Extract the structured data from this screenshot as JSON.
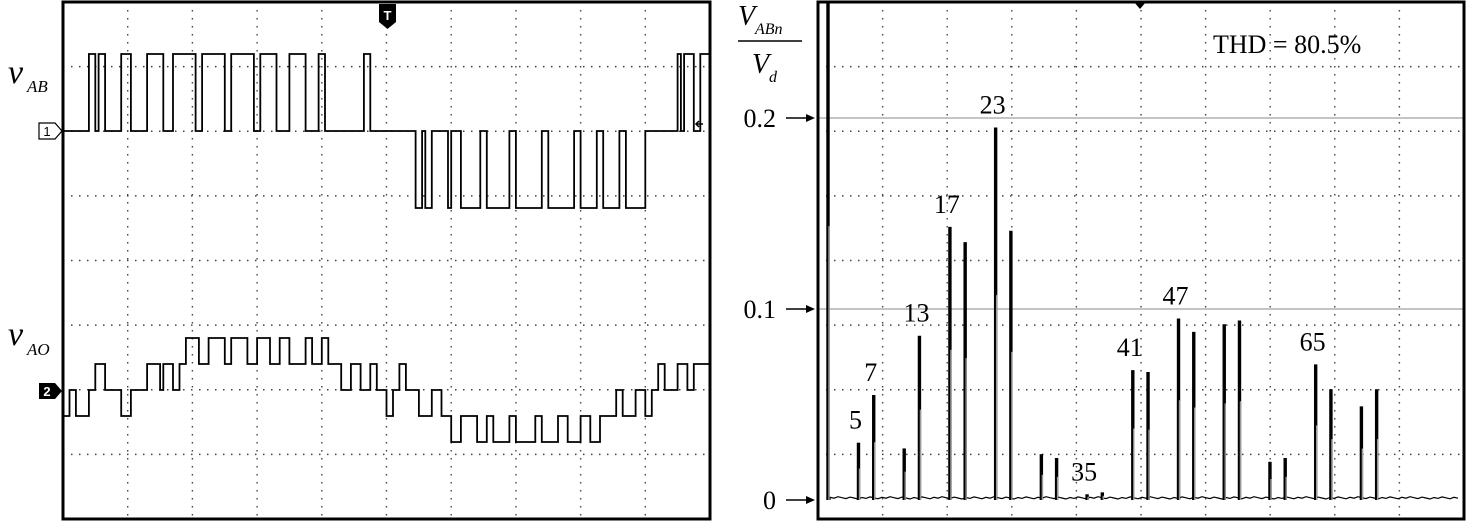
{
  "left_panel": {
    "channel1": {
      "label_main": "v",
      "label_sub": "AB",
      "marker": "1"
    },
    "channel2": {
      "label_main": "v",
      "label_sub": "AO",
      "marker": "2"
    },
    "trigger_marker": "T"
  },
  "right_panel": {
    "ylabel_top_main": "V",
    "ylabel_top_sub": "ABn",
    "ylabel_bottom_main": "V",
    "ylabel_bottom_sub": "d",
    "thd_text": "THD = 80.5%"
  },
  "chart_data": [
    {
      "type": "line",
      "title": "",
      "series": [
        {
          "name": "vAB",
          "levels": [
            -1,
            0,
            1
          ],
          "segments": [
            {
              "t": 0.0,
              "v": 0
            },
            {
              "t": 0.04,
              "v": 1
            },
            {
              "t": 0.05,
              "v": 0
            },
            {
              "t": 0.055,
              "v": 1
            },
            {
              "t": 0.065,
              "v": 0
            },
            {
              "t": 0.09,
              "v": 1
            },
            {
              "t": 0.105,
              "v": 0
            },
            {
              "t": 0.13,
              "v": 1
            },
            {
              "t": 0.155,
              "v": 0
            },
            {
              "t": 0.17,
              "v": 1
            },
            {
              "t": 0.205,
              "v": 0
            },
            {
              "t": 0.215,
              "v": 1
            },
            {
              "t": 0.25,
              "v": 0
            },
            {
              "t": 0.26,
              "v": 1
            },
            {
              "t": 0.295,
              "v": 0
            },
            {
              "t": 0.305,
              "v": 1
            },
            {
              "t": 0.33,
              "v": 0
            },
            {
              "t": 0.35,
              "v": 1
            },
            {
              "t": 0.375,
              "v": 0
            },
            {
              "t": 0.395,
              "v": 1
            },
            {
              "t": 0.405,
              "v": 0
            },
            {
              "t": 0.465,
              "v": 1
            },
            {
              "t": 0.475,
              "v": 0
            },
            {
              "t": 0.5,
              "v": 0
            },
            {
              "t": 0.545,
              "v": -1
            },
            {
              "t": 0.555,
              "v": 0
            },
            {
              "t": 0.56,
              "v": -1
            },
            {
              "t": 0.57,
              "v": 0
            },
            {
              "t": 0.595,
              "v": -1
            },
            {
              "t": 0.6,
              "v": 0
            },
            {
              "t": 0.615,
              "v": -1
            },
            {
              "t": 0.645,
              "v": 0
            },
            {
              "t": 0.655,
              "v": -1
            },
            {
              "t": 0.69,
              "v": 0
            },
            {
              "t": 0.7,
              "v": -1
            },
            {
              "t": 0.74,
              "v": 0
            },
            {
              "t": 0.75,
              "v": -1
            },
            {
              "t": 0.79,
              "v": 0
            },
            {
              "t": 0.8,
              "v": -1
            },
            {
              "t": 0.825,
              "v": 0
            },
            {
              "t": 0.835,
              "v": -1
            },
            {
              "t": 0.86,
              "v": 0
            },
            {
              "t": 0.87,
              "v": -1
            },
            {
              "t": 0.9,
              "v": 0
            },
            {
              "t": 0.95,
              "v": 1
            },
            {
              "t": 0.955,
              "v": 0
            },
            {
              "t": 0.96,
              "v": 1
            },
            {
              "t": 0.975,
              "v": 0
            },
            {
              "t": 0.985,
              "v": 1
            },
            {
              "t": 1.0,
              "v": 1
            }
          ]
        },
        {
          "name": "vAO",
          "levels": [
            -2,
            -1,
            0,
            1,
            2
          ],
          "segments": [
            {
              "t": 0.0,
              "v": -1
            },
            {
              "t": 0.01,
              "v": 0
            },
            {
              "t": 0.02,
              "v": -1
            },
            {
              "t": 0.04,
              "v": 0
            },
            {
              "t": 0.05,
              "v": 1
            },
            {
              "t": 0.065,
              "v": 0
            },
            {
              "t": 0.09,
              "v": -1
            },
            {
              "t": 0.105,
              "v": 0
            },
            {
              "t": 0.13,
              "v": 1
            },
            {
              "t": 0.15,
              "v": 0
            },
            {
              "t": 0.155,
              "v": 1
            },
            {
              "t": 0.17,
              "v": 0
            },
            {
              "t": 0.18,
              "v": 1
            },
            {
              "t": 0.19,
              "v": 2
            },
            {
              "t": 0.21,
              "v": 1
            },
            {
              "t": 0.225,
              "v": 2
            },
            {
              "t": 0.25,
              "v": 1
            },
            {
              "t": 0.26,
              "v": 2
            },
            {
              "t": 0.285,
              "v": 1
            },
            {
              "t": 0.3,
              "v": 2
            },
            {
              "t": 0.32,
              "v": 1
            },
            {
              "t": 0.335,
              "v": 2
            },
            {
              "t": 0.35,
              "v": 1
            },
            {
              "t": 0.375,
              "v": 2
            },
            {
              "t": 0.385,
              "v": 1
            },
            {
              "t": 0.4,
              "v": 2
            },
            {
              "t": 0.41,
              "v": 1
            },
            {
              "t": 0.43,
              "v": 0
            },
            {
              "t": 0.445,
              "v": 1
            },
            {
              "t": 0.46,
              "v": 0
            },
            {
              "t": 0.475,
              "v": 1
            },
            {
              "t": 0.485,
              "v": 0
            },
            {
              "t": 0.5,
              "v": -1
            },
            {
              "t": 0.51,
              "v": 0
            },
            {
              "t": 0.52,
              "v": 1
            },
            {
              "t": 0.53,
              "v": 0
            },
            {
              "t": 0.55,
              "v": -1
            },
            {
              "t": 0.57,
              "v": 0
            },
            {
              "t": 0.585,
              "v": -1
            },
            {
              "t": 0.6,
              "v": -2
            },
            {
              "t": 0.615,
              "v": -1
            },
            {
              "t": 0.64,
              "v": -2
            },
            {
              "t": 0.655,
              "v": -1
            },
            {
              "t": 0.665,
              "v": -2
            },
            {
              "t": 0.69,
              "v": -1
            },
            {
              "t": 0.7,
              "v": -2
            },
            {
              "t": 0.73,
              "v": -1
            },
            {
              "t": 0.74,
              "v": -2
            },
            {
              "t": 0.765,
              "v": -1
            },
            {
              "t": 0.78,
              "v": -2
            },
            {
              "t": 0.8,
              "v": -1
            },
            {
              "t": 0.815,
              "v": -2
            },
            {
              "t": 0.83,
              "v": -1
            },
            {
              "t": 0.855,
              "v": 0
            },
            {
              "t": 0.865,
              "v": -1
            },
            {
              "t": 0.885,
              "v": 0
            },
            {
              "t": 0.9,
              "v": -1
            },
            {
              "t": 0.91,
              "v": 0
            },
            {
              "t": 0.92,
              "v": 1
            },
            {
              "t": 0.93,
              "v": 0
            },
            {
              "t": 0.95,
              "v": 1
            },
            {
              "t": 0.965,
              "v": 0
            },
            {
              "t": 0.975,
              "v": 1
            },
            {
              "t": 1.0,
              "v": 0
            }
          ]
        }
      ]
    },
    {
      "type": "bar",
      "title": "",
      "ylabel": "VABn/Vd",
      "ylim": [
        0,
        0.26
      ],
      "xlim": [
        0,
        80
      ],
      "yticks": [
        {
          "value": 0,
          "label": "0"
        },
        {
          "value": 0.1,
          "label": "0.1"
        },
        {
          "value": 0.2,
          "label": "0.2"
        }
      ],
      "grid": true,
      "harmonics": [
        {
          "n": 1,
          "value": 0.9
        },
        {
          "n": 5,
          "value": 0.03,
          "label": "5"
        },
        {
          "n": 7,
          "value": 0.055,
          "label": "7"
        },
        {
          "n": 11,
          "value": 0.027
        },
        {
          "n": 13,
          "value": 0.086,
          "label": "13"
        },
        {
          "n": 17,
          "value": 0.143,
          "label": "17"
        },
        {
          "n": 19,
          "value": 0.135
        },
        {
          "n": 23,
          "value": 0.195,
          "label": "23"
        },
        {
          "n": 25,
          "value": 0.141
        },
        {
          "n": 29,
          "value": 0.024
        },
        {
          "n": 31,
          "value": 0.022
        },
        {
          "n": 35,
          "value": 0.003,
          "label": "35"
        },
        {
          "n": 37,
          "value": 0.004
        },
        {
          "n": 41,
          "value": 0.068,
          "label": "41"
        },
        {
          "n": 43,
          "value": 0.067
        },
        {
          "n": 47,
          "value": 0.095,
          "label": "47"
        },
        {
          "n": 49,
          "value": 0.088
        },
        {
          "n": 53,
          "value": 0.092
        },
        {
          "n": 55,
          "value": 0.094
        },
        {
          "n": 59,
          "value": 0.02
        },
        {
          "n": 61,
          "value": 0.022
        },
        {
          "n": 65,
          "value": 0.071,
          "label": "65"
        },
        {
          "n": 67,
          "value": 0.058
        },
        {
          "n": 71,
          "value": 0.049
        },
        {
          "n": 73,
          "value": 0.058
        }
      ]
    }
  ]
}
